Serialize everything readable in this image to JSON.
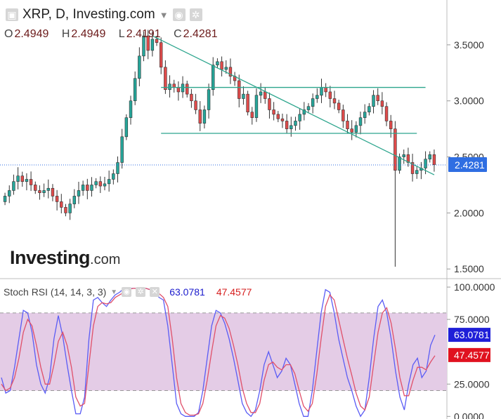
{
  "header": {
    "symbol": "XRP, D, Investing.com",
    "open_key": "O",
    "open": "2.4949",
    "high_key": "H",
    "high": "2.4949",
    "low_key": "L",
    "low": "2.4191",
    "close_key": "C",
    "close": "2.4281",
    "window_icon": "window-icon",
    "chevron_icon": "chevron-down-icon",
    "eye_icon": "eye-icon",
    "gear_icon": "gear-icon"
  },
  "watermark": {
    "brand": "Investing",
    "suffix": ".com"
  },
  "stoch": {
    "title": "Stoch RSI (14, 14, 3, 3)",
    "k_value": "63.0781",
    "d_value": "47.4577",
    "close_icon": "close-icon"
  },
  "colors": {
    "up": "#26a69a",
    "down": "#e04b4b",
    "wick": "#333333",
    "trend": "#2ca58d",
    "k_line": "#5a5cf5",
    "d_line": "#e0506a",
    "band": "#e4cce6",
    "price_tag": "#2f6ee2",
    "k_tag": "#1f1fd8",
    "d_tag": "#e0121f"
  },
  "chart_data": [
    {
      "type": "candlestick",
      "price_axis": {
        "ylim": [
          1.42,
          3.9
        ],
        "ticks": [
          "3.5000",
          "3.0000",
          "2.5000",
          "2.0000",
          "1.5000"
        ]
      },
      "last_price": "2.4281",
      "close": [
        2.15,
        2.2,
        2.28,
        2.33,
        2.28,
        2.3,
        2.25,
        2.2,
        2.18,
        2.2,
        2.22,
        2.15,
        2.1,
        2.05,
        2.0,
        2.08,
        2.15,
        2.2,
        2.25,
        2.2,
        2.25,
        2.28,
        2.24,
        2.26,
        2.3,
        2.35,
        2.45,
        2.68,
        2.85,
        3.0,
        3.2,
        3.4,
        3.58,
        3.45,
        3.55,
        3.52,
        3.3,
        3.1,
        3.15,
        3.12,
        3.08,
        3.15,
        3.06,
        3.0,
        2.92,
        2.8,
        2.92,
        3.1,
        3.32,
        3.35,
        3.28,
        3.3,
        3.22,
        3.18,
        3.02,
        3.06,
        2.9,
        2.85,
        3.05,
        3.08,
        3.02,
        2.92,
        2.88,
        2.84,
        2.82,
        2.75,
        2.78,
        2.82,
        2.88,
        2.92,
        2.95,
        3.02,
        3.05,
        3.12,
        3.08,
        3.02,
        2.98,
        2.92,
        2.82,
        2.75,
        2.72,
        2.78,
        2.85,
        2.9,
        2.95,
        3.05,
        3.0,
        2.95,
        2.82,
        2.75,
        2.38,
        2.5,
        2.52,
        2.45,
        2.35,
        2.38,
        2.4,
        2.48,
        2.52,
        2.43
      ],
      "trendlines": [
        {
          "from": [
            "bar 34",
            3.58
          ],
          "to": [
            "bar 99",
            2.34
          ]
        },
        {
          "from": [
            "bar 36",
            3.12
          ],
          "to": [
            "bar 97",
            3.12
          ]
        },
        {
          "from": [
            "bar 36",
            2.71
          ],
          "to": [
            "bar 95",
            2.71
          ]
        }
      ]
    },
    {
      "type": "line",
      "title": "Stoch RSI (14, 14, 3, 3)",
      "ylim": [
        -2,
        106
      ],
      "ticks": [
        "100.0000",
        "75.0000",
        "25.0000",
        "0.0000"
      ],
      "band": [
        20,
        80
      ],
      "series": [
        {
          "values": [
            30,
            18,
            20,
            38,
            60,
            82,
            80,
            65,
            40,
            25,
            18,
            30,
            60,
            78,
            62,
            40,
            20,
            2,
            2,
            15,
            60,
            90,
            92,
            88,
            85,
            90,
            94,
            96,
            99,
            99,
            99,
            99,
            99,
            99,
            98,
            96,
            92,
            90,
            70,
            40,
            10,
            2,
            0,
            0,
            0,
            3,
            20,
            45,
            70,
            82,
            80,
            72,
            60,
            45,
            28,
            10,
            3,
            0,
            5,
            20,
            40,
            50,
            40,
            30,
            35,
            45,
            40,
            25,
            10,
            0,
            0,
            20,
            50,
            80,
            98,
            96,
            80,
            60,
            45,
            30,
            20,
            8,
            0,
            5,
            30,
            60,
            85,
            90,
            80,
            60,
            35,
            15,
            5,
            25,
            40,
            45,
            30,
            35,
            55,
            63
          ]
        },
        {
          "values": [
            25,
            20,
            22,
            30,
            45,
            65,
            75,
            70,
            55,
            38,
            25,
            25,
            40,
            58,
            65,
            55,
            38,
            15,
            8,
            10,
            40,
            70,
            85,
            88,
            87,
            88,
            92,
            94,
            96,
            98,
            99,
            99,
            99,
            99,
            98,
            97,
            95,
            92,
            85,
            60,
            30,
            10,
            3,
            1,
            1,
            2,
            10,
            28,
            50,
            70,
            78,
            76,
            68,
            55,
            40,
            22,
            10,
            3,
            3,
            10,
            28,
            40,
            42,
            38,
            36,
            40,
            40,
            33,
            20,
            8,
            4,
            10,
            32,
            60,
            85,
            94,
            90,
            75,
            60,
            45,
            32,
            18,
            8,
            5,
            15,
            40,
            65,
            80,
            84,
            72,
            52,
            30,
            16,
            16,
            28,
            38,
            38,
            36,
            42,
            47
          ]
        }
      ]
    }
  ]
}
